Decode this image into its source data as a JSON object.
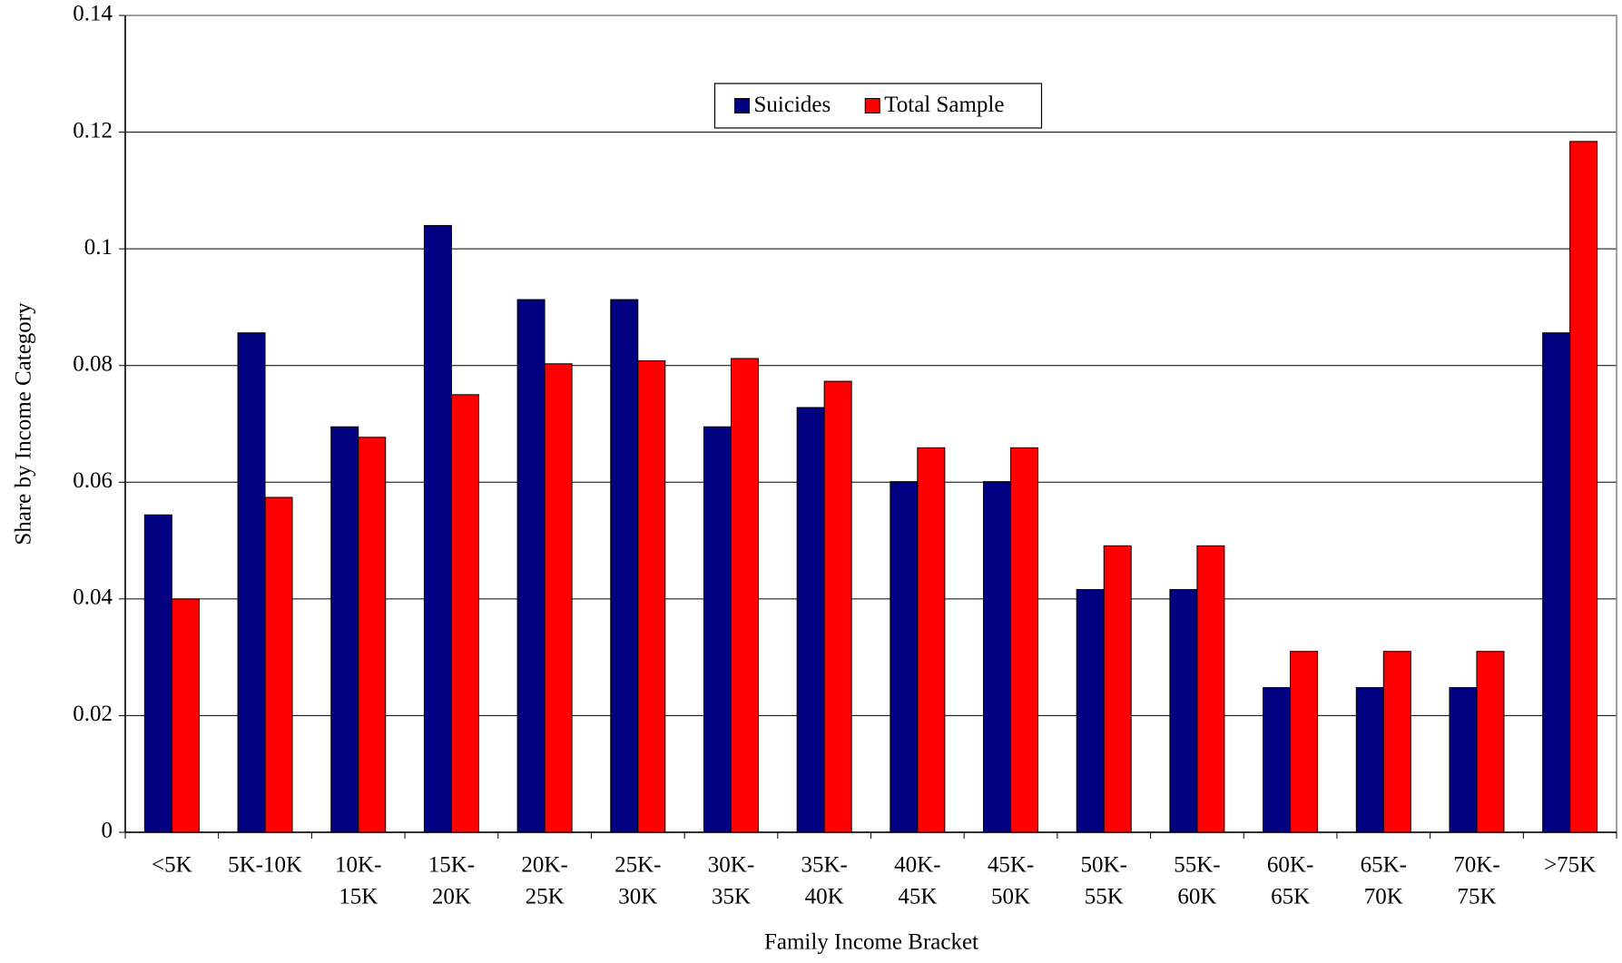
{
  "chart_data": {
    "type": "bar",
    "x_label": "Family Income Bracket",
    "y_label": "Share by Income Category",
    "categories": [
      [
        "<5K"
      ],
      [
        "5K-10K"
      ],
      [
        "10K-",
        "15K"
      ],
      [
        "15K-",
        "20K"
      ],
      [
        "20K-",
        "25K"
      ],
      [
        "25K-",
        "30K"
      ],
      [
        "30K-",
        "35K"
      ],
      [
        "35K-",
        "40K"
      ],
      [
        "40K-",
        "45K"
      ],
      [
        "45K-",
        "50K"
      ],
      [
        "50K-",
        "55K"
      ],
      [
        "55K-",
        "60K"
      ],
      [
        "60K-",
        "65K"
      ],
      [
        "65K-",
        "70K"
      ],
      [
        "70K-",
        "75K"
      ],
      [
        ">75K"
      ]
    ],
    "series": [
      {
        "name": "Suicides",
        "color": "#000080",
        "values": [
          0.0544,
          0.0856,
          0.0695,
          0.104,
          0.0913,
          0.0913,
          0.0695,
          0.0728,
          0.0601,
          0.0601,
          0.0416,
          0.0416,
          0.0248,
          0.0248,
          0.0248,
          0.0856
        ]
      },
      {
        "name": "Total Sample",
        "color": "#ff0000",
        "values": [
          0.04,
          0.0574,
          0.0677,
          0.075,
          0.0803,
          0.0808,
          0.0812,
          0.0773,
          0.0659,
          0.0659,
          0.0491,
          0.0491,
          0.031,
          0.031,
          0.031,
          0.1184
        ]
      }
    ],
    "ylim": [
      0,
      0.14
    ],
    "yticks": [
      0,
      0.02,
      0.04,
      0.06,
      0.08,
      0.1,
      0.12,
      0.14
    ],
    "grid": true,
    "legend": "top-center"
  }
}
